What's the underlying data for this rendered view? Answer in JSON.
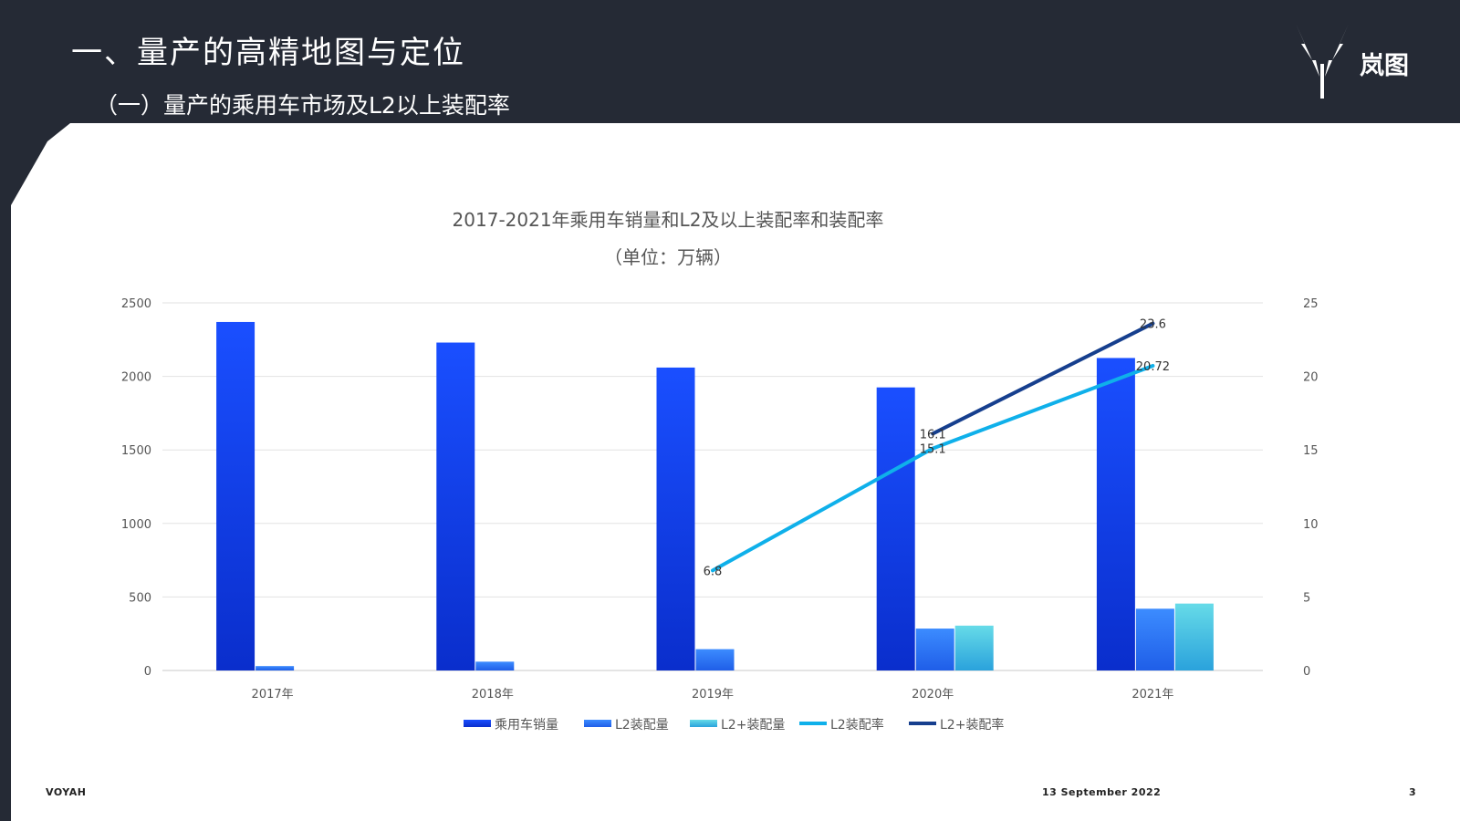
{
  "header": {
    "title": "一、量产的高精地图与定位",
    "subtitle": "（一）量产的乘用车市场及L2以上装配率",
    "brand_text": "岚图"
  },
  "footer": {
    "brand": "VOYAH",
    "date": "13 September 2022",
    "page": "3"
  },
  "chart_data": {
    "type": "bar",
    "title": "2017-2021年乘用车销量和L2及以上装配率和装配率",
    "subtitle": "（单位：万辆）",
    "categories": [
      "2017年",
      "2018年",
      "2019年",
      "2020年",
      "2021年"
    ],
    "ylim": [
      0,
      2500
    ],
    "y_ticks": [
      "0",
      "500",
      "1000",
      "1500",
      "2000",
      "2500"
    ],
    "y2lim": [
      0,
      25
    ],
    "y2_ticks": [
      "0",
      "5",
      "10",
      "15",
      "20",
      "25"
    ],
    "grid": true,
    "legend_position": "bottom",
    "bar_series": [
      {
        "name": "乘用车销量",
        "values": [
          2370,
          2230,
          2060,
          1925,
          2125
        ],
        "color_top": "#1a4fff",
        "color_bottom": "#0a2ecc"
      },
      {
        "name": "L2装配量",
        "values": [
          30,
          60,
          145,
          285,
          420
        ],
        "color_top": "#3c8cff",
        "color_bottom": "#1f5ee8"
      },
      {
        "name": "L2+装配量",
        "values": [
          null,
          null,
          null,
          305,
          455
        ],
        "color_top": "#66dbe8",
        "color_bottom": "#2aa2dc"
      }
    ],
    "line_series": [
      {
        "name": "L2装配率",
        "axis": "right",
        "values": [
          null,
          null,
          6.8,
          15.1,
          20.72
        ],
        "labels": [
          null,
          null,
          "6.8",
          "15.1",
          "20.72"
        ],
        "color": "#0fb0ea"
      },
      {
        "name": "L2+装配率",
        "axis": "right",
        "values": [
          null,
          null,
          null,
          16.1,
          23.6
        ],
        "labels": [
          null,
          null,
          null,
          "16.1",
          "23.6"
        ],
        "color": "#163f8e"
      }
    ]
  }
}
